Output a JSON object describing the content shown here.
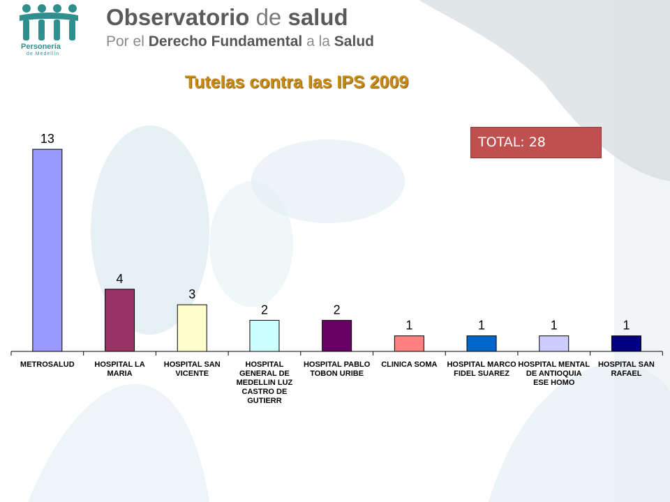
{
  "header": {
    "title_part1": "Observatorio",
    "title_part2": "de",
    "title_part3": "salud",
    "subtitle_part1": "Por el",
    "subtitle_part2": "Derecho Fundamental",
    "subtitle_part3": "a la",
    "subtitle_part4": "Salud",
    "logo_word": "Personería",
    "logo_sub": "de Medellín",
    "logo_icon": "four-people-icon"
  },
  "total_label": "TOTAL: 28",
  "colors": {
    "title": "#c98a12",
    "total_box": "#c0504d",
    "logo": "#2f8f8f"
  },
  "chart_data": {
    "type": "bar",
    "title": "Tutelas contra las IPS 2009",
    "categories": [
      "METROSALUD",
      "HOSPITAL LA MARIA",
      "HOSPITAL SAN VICENTE",
      "HOSPITAL GENERAL DE MEDELLIN LUZ CASTRO DE GUTIERR",
      "HOSPITAL PABLO TOBON URIBE",
      "CLINICA SOMA",
      "HOSPITAL MARCO FIDEL SUAREZ",
      "HOSPITAL MENTAL DE ANTIOQUIA ESE HOMO",
      "HOSPITAL SAN RAFAEL"
    ],
    "values": [
      13,
      4,
      3,
      2,
      2,
      1,
      1,
      1,
      1
    ],
    "colors": [
      "#9999ff",
      "#993366",
      "#ffffcc",
      "#ccffff",
      "#660066",
      "#ff8080",
      "#0066cc",
      "#ccccff",
      "#000080"
    ],
    "ylim": [
      0,
      13
    ],
    "data_labels": true,
    "grid": false,
    "legend": "none"
  }
}
